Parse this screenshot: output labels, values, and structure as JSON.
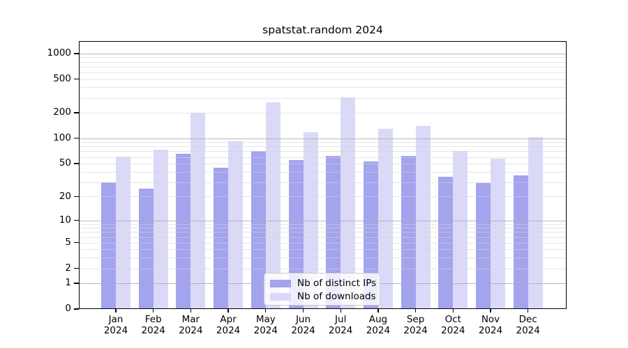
{
  "title": "spatstat.random 2024",
  "chart_data": {
    "type": "bar",
    "title": "spatstat.random 2024",
    "y_scale": "log1p",
    "categories": [
      "Jan",
      "Feb",
      "Mar",
      "Apr",
      "May",
      "Jun",
      "Jul",
      "Aug",
      "Sep",
      "Oct",
      "Nov",
      "Dec"
    ],
    "category_year": "2024",
    "series": [
      {
        "name": "Nb of distinct IPs",
        "color": "#a3a3ee",
        "values": [
          30,
          25,
          65,
          45,
          70,
          55,
          62,
          53,
          62,
          35,
          29,
          36
        ]
      },
      {
        "name": "Nb of downloads",
        "color": "#dadaf8",
        "values": [
          61,
          73,
          200,
          93,
          268,
          119,
          306,
          129,
          141,
          70,
          57,
          103
        ]
      }
    ],
    "y_ticks": [
      0,
      1,
      2,
      5,
      10,
      20,
      50,
      100,
      200,
      500,
      1000
    ],
    "y_major_gridlines": [
      1,
      10,
      100,
      1000
    ],
    "y_minor_gridlines": [
      2,
      3,
      4,
      5,
      6,
      7,
      8,
      9,
      20,
      30,
      40,
      50,
      60,
      70,
      80,
      90,
      200,
      300,
      400,
      500,
      600,
      700,
      800,
      900
    ],
    "y_axis_top": 1400,
    "ylim": [
      0,
      1400
    ],
    "grid": "on",
    "legend_position": "bottom-center",
    "legend_labels": [
      "Nb of distinct IPs",
      "Nb of downloads"
    ]
  }
}
